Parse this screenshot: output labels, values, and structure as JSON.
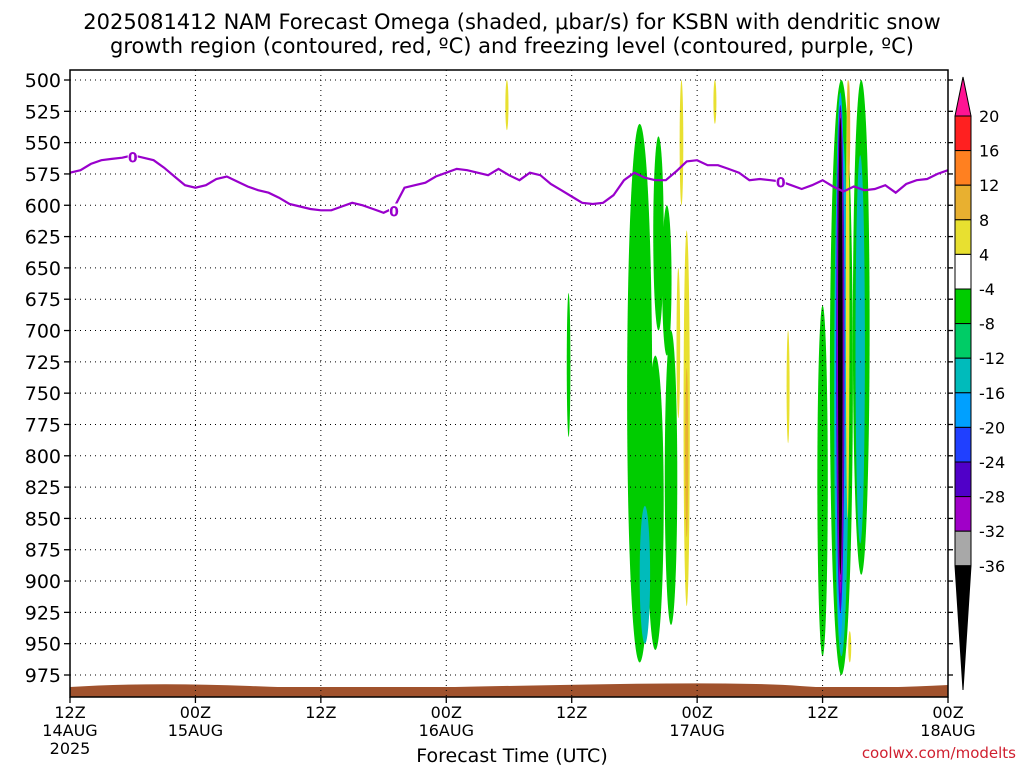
{
  "title_line1": "2025081412 NAM Forecast Omega (shaded, μbar/s) for KSBN with dendritic snow",
  "title_line2": "growth region (contoured, red, ºC) and freezing level (contoured, purple, ºC)",
  "credit": "coolwx.com/modelts",
  "colors": {
    "freezing_line": "#9900cc",
    "ground": "#a0522d",
    "grid": "#000000"
  },
  "chart_data": {
    "type": "heatmap",
    "xlabel": "Forecast Time (UTC)",
    "x_range_hours": [
      0,
      84
    ],
    "y_range_mb": [
      500,
      990
    ],
    "y_ticks": [
      500,
      525,
      550,
      575,
      600,
      625,
      650,
      675,
      700,
      725,
      750,
      775,
      800,
      825,
      850,
      875,
      900,
      925,
      950,
      975
    ],
    "x_ticks": [
      {
        "h": 0,
        "l1": "12Z",
        "l2": "14AUG",
        "l3": "2025"
      },
      {
        "h": 12,
        "l1": "00Z",
        "l2": "15AUG",
        "l3": ""
      },
      {
        "h": 24,
        "l1": "12Z",
        "l2": "",
        "l3": ""
      },
      {
        "h": 36,
        "l1": "00Z",
        "l2": "16AUG",
        "l3": ""
      },
      {
        "h": 48,
        "l1": "12Z",
        "l2": "",
        "l3": ""
      },
      {
        "h": 60,
        "l1": "00Z",
        "l2": "17AUG",
        "l3": ""
      },
      {
        "h": 72,
        "l1": "12Z",
        "l2": "",
        "l3": ""
      },
      {
        "h": 84,
        "l1": "00Z",
        "l2": "18AUG",
        "l3": ""
      }
    ],
    "colorbar": {
      "labels": [
        "20",
        "16",
        "12",
        "8",
        "4",
        "-4",
        "-8",
        "-12",
        "-16",
        "-20",
        "-24",
        "-28",
        "-32",
        "-36"
      ],
      "colors": [
        "#ff1493",
        "#ff2020",
        "#ff8020",
        "#e8b030",
        "#e8e030",
        "#ffffff",
        "#00cc00",
        "#00cc66",
        "#00bbbb",
        "#00a0ff",
        "#2040ff",
        "#5000c8",
        "#a000c8",
        "#a8a8a8",
        "#000000"
      ]
    },
    "freezing_level": {
      "name": "0",
      "points": [
        [
          0,
          574
        ],
        [
          1,
          572
        ],
        [
          2,
          567
        ],
        [
          3,
          564
        ],
        [
          4,
          563
        ],
        [
          5,
          562
        ],
        [
          6,
          560
        ],
        [
          7,
          562
        ],
        [
          8,
          564
        ],
        [
          9,
          570
        ],
        [
          10,
          577
        ],
        [
          11,
          584
        ],
        [
          12,
          586
        ],
        [
          13,
          584
        ],
        [
          14,
          579
        ],
        [
          15,
          577
        ],
        [
          16,
          581
        ],
        [
          17,
          585
        ],
        [
          18,
          588
        ],
        [
          19,
          590
        ],
        [
          20,
          594
        ],
        [
          21,
          599
        ],
        [
          22,
          601
        ],
        [
          23,
          603
        ],
        [
          24,
          604
        ],
        [
          25,
          604
        ],
        [
          26,
          601
        ],
        [
          27,
          598
        ],
        [
          28,
          600
        ],
        [
          29,
          603
        ],
        [
          30,
          606
        ],
        [
          31,
          602
        ],
        [
          32,
          586
        ],
        [
          33,
          584
        ],
        [
          34,
          582
        ],
        [
          35,
          577
        ],
        [
          36,
          574
        ],
        [
          37,
          571
        ],
        [
          38,
          572
        ],
        [
          39,
          574
        ],
        [
          40,
          576
        ],
        [
          41,
          571
        ],
        [
          42,
          576
        ],
        [
          43,
          580
        ],
        [
          44,
          574
        ],
        [
          45,
          576
        ],
        [
          46,
          583
        ],
        [
          47,
          588
        ],
        [
          48,
          593
        ],
        [
          49,
          598
        ],
        [
          50,
          599
        ],
        [
          51,
          598
        ],
        [
          52,
          592
        ],
        [
          53,
          580
        ],
        [
          54,
          574
        ],
        [
          55,
          578
        ],
        [
          56,
          580
        ],
        [
          57,
          580
        ],
        [
          58,
          573
        ],
        [
          59,
          565
        ],
        [
          60,
          564
        ],
        [
          61,
          568
        ],
        [
          62,
          568
        ],
        [
          63,
          571
        ],
        [
          64,
          574
        ],
        [
          65,
          580
        ],
        [
          66,
          579
        ],
        [
          67,
          580
        ],
        [
          68,
          581
        ],
        [
          69,
          584
        ],
        [
          70,
          587
        ],
        [
          71,
          584
        ],
        [
          72,
          580
        ],
        [
          73,
          585
        ],
        [
          74,
          589
        ],
        [
          75,
          585
        ],
        [
          76,
          588
        ],
        [
          77,
          587
        ],
        [
          78,
          584
        ],
        [
          79,
          590
        ],
        [
          80,
          583
        ],
        [
          81,
          580
        ],
        [
          82,
          579
        ],
        [
          83,
          575
        ],
        [
          84,
          572
        ]
      ],
      "labels": [
        [
          6,
          562
        ],
        [
          31,
          605
        ],
        [
          68,
          582
        ]
      ]
    },
    "omega_blobs": [
      {
        "value": -4,
        "x": 54.5,
        "p0": 535,
        "p1": 965,
        "w": 2.4
      },
      {
        "value": -4,
        "x": 56.0,
        "p0": 720,
        "p1": 955,
        "w": 1.6
      },
      {
        "value": -4,
        "x": 57.5,
        "p0": 700,
        "p1": 935,
        "w": 1.2
      },
      {
        "value": -4,
        "x": 56.3,
        "p0": 545,
        "p1": 700,
        "w": 1.0
      },
      {
        "value": -4,
        "x": 57.1,
        "p0": 600,
        "p1": 720,
        "w": 0.9
      },
      {
        "value": -4,
        "x": 47.7,
        "p0": 670,
        "p1": 785,
        "w": 0.35
      },
      {
        "value": -12,
        "x": 55.0,
        "p0": 840,
        "p1": 950,
        "w": 1.0
      },
      {
        "value": 4,
        "x": 59.0,
        "p0": 620,
        "p1": 920,
        "w": 0.6
      },
      {
        "value": 4,
        "x": 58.5,
        "p0": 500,
        "p1": 600,
        "w": 0.35
      },
      {
        "value": 4,
        "x": 61.7,
        "p0": 500,
        "p1": 535,
        "w": 0.2
      },
      {
        "value": 4,
        "x": 58.2,
        "p0": 650,
        "p1": 770,
        "w": 0.35
      },
      {
        "value": 4,
        "x": 41.8,
        "p0": 500,
        "p1": 540,
        "w": 0.3
      },
      {
        "value": 8,
        "x": 59.0,
        "p0": 730,
        "p1": 865,
        "w": 0.25
      },
      {
        "value": 4,
        "x": 68.7,
        "p0": 700,
        "p1": 790,
        "w": 0.25
      },
      {
        "value": -4,
        "x": 73.8,
        "p0": 500,
        "p1": 975,
        "w": 2.2
      },
      {
        "value": -4,
        "x": 75.7,
        "p0": 500,
        "p1": 895,
        "w": 1.6
      },
      {
        "value": -4,
        "x": 72.0,
        "p0": 680,
        "p1": 960,
        "w": 1.0
      },
      {
        "value": -12,
        "x": 73.8,
        "p0": 540,
        "p1": 960,
        "w": 1.4
      },
      {
        "value": -12,
        "x": 75.6,
        "p0": 560,
        "p1": 870,
        "w": 0.9
      },
      {
        "value": -16,
        "x": 73.7,
        "p0": 510,
        "p1": 945,
        "w": 1.0
      },
      {
        "value": -24,
        "x": 73.7,
        "p0": 520,
        "p1": 925,
        "w": 0.8
      },
      {
        "value": -28,
        "x": 73.7,
        "p0": 525,
        "p1": 910,
        "w": 0.6
      },
      {
        "value": -36,
        "x": 73.7,
        "p0": 530,
        "p1": 895,
        "w": 0.45
      },
      {
        "value": 4,
        "x": 74.4,
        "p0": 500,
        "p1": 850,
        "w": 0.35
      },
      {
        "value": 8,
        "x": 74.5,
        "p0": 500,
        "p1": 580,
        "w": 0.2
      },
      {
        "value": 4,
        "x": 74.6,
        "p0": 940,
        "p1": 965,
        "w": 0.15
      }
    ]
  }
}
